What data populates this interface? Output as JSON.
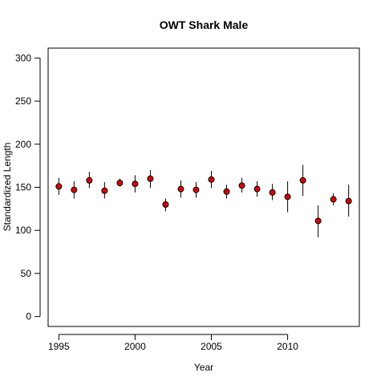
{
  "chart_data": {
    "type": "scatter",
    "title": "OWT Shark Male",
    "xlabel": "Year",
    "ylabel": "Standardized Length",
    "xlim": [
      1994.3,
      2014.7
    ],
    "ylim": [
      -11.5,
      311.5
    ],
    "x_ticks": [
      1995,
      2000,
      2005,
      2010
    ],
    "y_ticks": [
      0,
      50,
      100,
      150,
      200,
      250,
      300
    ],
    "grid": false,
    "legend": "none",
    "marker_color": "#dd0000",
    "error_bar_color": "#000000",
    "series": [
      {
        "points": [
          {
            "x": 1995,
            "y": 151,
            "lower": 141,
            "upper": 161
          },
          {
            "x": 1996,
            "y": 147,
            "lower": 137,
            "upper": 157
          },
          {
            "x": 1997,
            "y": 158,
            "lower": 149,
            "upper": 168
          },
          {
            "x": 1998,
            "y": 146,
            "lower": 137,
            "upper": 156
          },
          {
            "x": 1999,
            "y": 155,
            "lower": 151,
            "upper": 160
          },
          {
            "x": 2000,
            "y": 154,
            "lower": 144,
            "upper": 164
          },
          {
            "x": 2001,
            "y": 160,
            "lower": 149,
            "upper": 170
          },
          {
            "x": 2002,
            "y": 130,
            "lower": 122,
            "upper": 137
          },
          {
            "x": 2003,
            "y": 148,
            "lower": 138,
            "upper": 158
          },
          {
            "x": 2004,
            "y": 147,
            "lower": 138,
            "upper": 156
          },
          {
            "x": 2005,
            "y": 159,
            "lower": 149,
            "upper": 169
          },
          {
            "x": 2006,
            "y": 145,
            "lower": 137,
            "upper": 153
          },
          {
            "x": 2007,
            "y": 152,
            "lower": 144,
            "upper": 161
          },
          {
            "x": 2008,
            "y": 148,
            "lower": 139,
            "upper": 157
          },
          {
            "x": 2009,
            "y": 144,
            "lower": 135,
            "upper": 154
          },
          {
            "x": 2010,
            "y": 139,
            "lower": 121,
            "upper": 157
          },
          {
            "x": 2011,
            "y": 158,
            "lower": 140,
            "upper": 176
          },
          {
            "x": 2012,
            "y": 111,
            "lower": 92,
            "upper": 129
          },
          {
            "x": 2013,
            "y": 136,
            "lower": 129,
            "upper": 143
          },
          {
            "x": 2014,
            "y": 134,
            "lower": 116,
            "upper": 153
          }
        ]
      }
    ]
  }
}
